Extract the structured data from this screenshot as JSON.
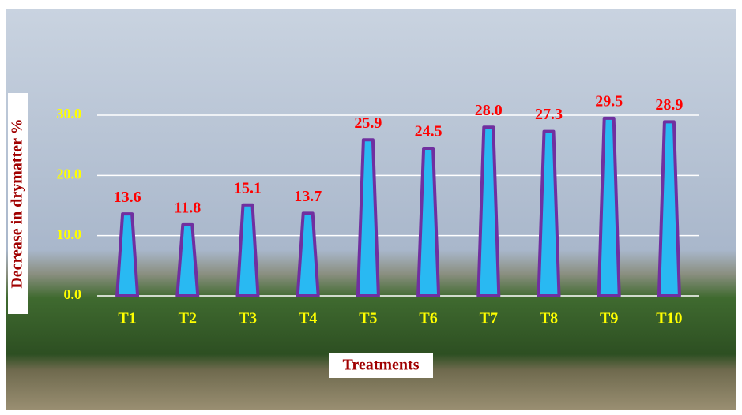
{
  "chart_data": {
    "type": "bar",
    "x_label": "Treatments",
    "y_label": "Decrease in drymatter %",
    "categories": [
      "T1",
      "T2",
      "T3",
      "T4",
      "T5",
      "T6",
      "T7",
      "T8",
      "T9",
      "T10"
    ],
    "values": [
      13.6,
      11.8,
      15.1,
      13.7,
      25.9,
      24.5,
      28,
      27.3,
      29.5,
      28.9
    ],
    "value_labels": [
      "13.6",
      "11.8",
      "15.1",
      "13.7",
      "25.9",
      "24.5",
      "28.0",
      "27.3",
      "29.5",
      "28.9"
    ],
    "color": "#29b9f2",
    "edge_color": "#7030a0",
    "ylim": [
      0,
      30
    ],
    "yticks": [
      {
        "value": 0,
        "label": "0.0"
      },
      {
        "value": 10,
        "label": "10.0"
      },
      {
        "value": 20,
        "label": "20.0"
      },
      {
        "value": 30,
        "label": "30.0"
      }
    ],
    "grid": true
  }
}
